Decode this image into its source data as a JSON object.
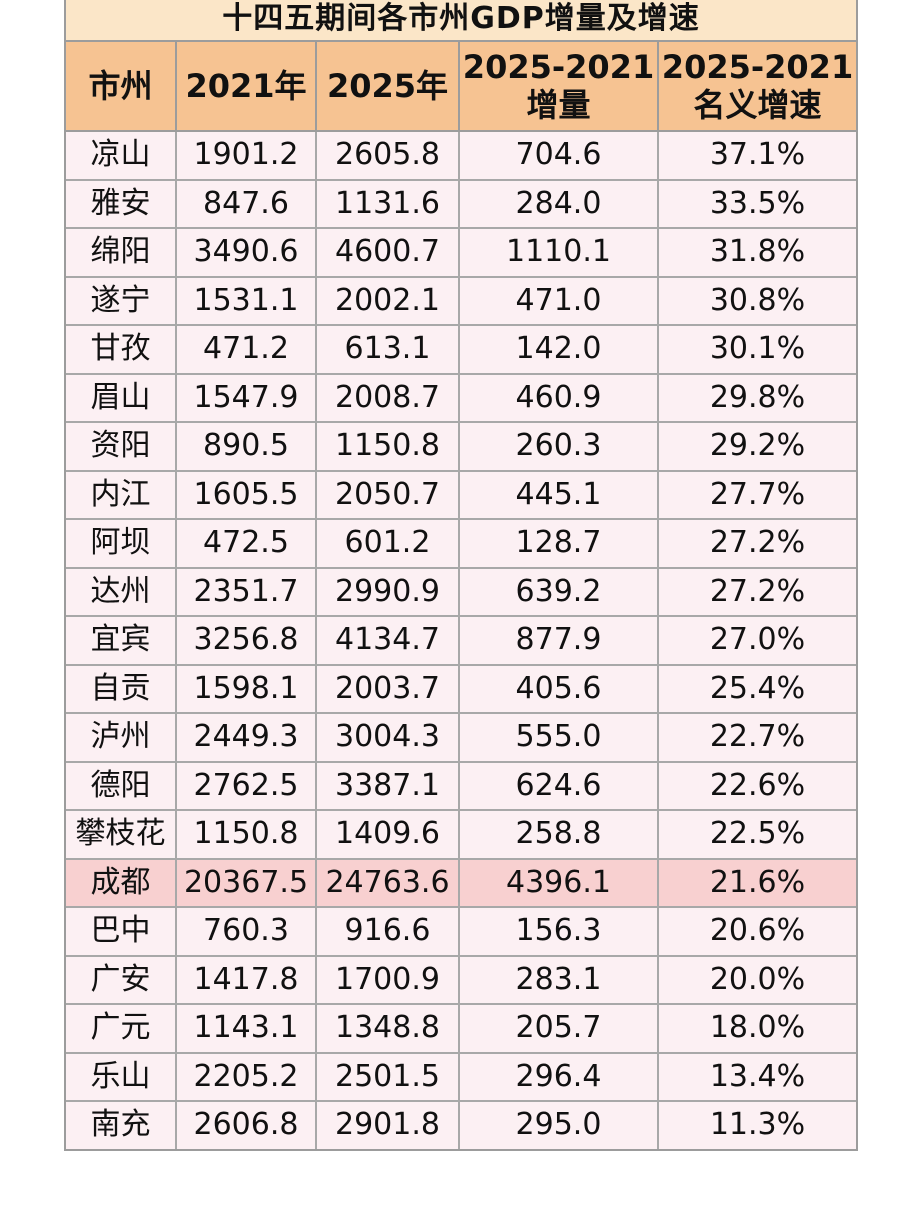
{
  "title": "十四五期间各市州GDP增量及增速",
  "headers": [
    {
      "line1": "市州",
      "line2": ""
    },
    {
      "line1": "2021年",
      "line2": ""
    },
    {
      "line1": "2025年",
      "line2": ""
    },
    {
      "line1": "2025-2021",
      "line2": "增量"
    },
    {
      "line1": "2025-2021",
      "line2": "名义增速"
    }
  ],
  "rows": [
    [
      "凉山",
      "1901.2",
      "2605.8",
      "704.6",
      "37.1%"
    ],
    [
      "雅安",
      "847.6",
      "1131.6",
      "284.0",
      "33.5%"
    ],
    [
      "绵阳",
      "3490.6",
      "4600.7",
      "1110.1",
      "31.8%"
    ],
    [
      "遂宁",
      "1531.1",
      "2002.1",
      "471.0",
      "30.8%"
    ],
    [
      "甘孜",
      "471.2",
      "613.1",
      "142.0",
      "30.1%"
    ],
    [
      "眉山",
      "1547.9",
      "2008.7",
      "460.9",
      "29.8%"
    ],
    [
      "资阳",
      "890.5",
      "1150.8",
      "260.3",
      "29.2%"
    ],
    [
      "内江",
      "1605.5",
      "2050.7",
      "445.1",
      "27.7%"
    ],
    [
      "阿坝",
      "472.5",
      "601.2",
      "128.7",
      "27.2%"
    ],
    [
      "达州",
      "2351.7",
      "2990.9",
      "639.2",
      "27.2%"
    ],
    [
      "宜宾",
      "3256.8",
      "4134.7",
      "877.9",
      "27.0%"
    ],
    [
      "自贡",
      "1598.1",
      "2003.7",
      "405.6",
      "25.4%"
    ],
    [
      "泸州",
      "2449.3",
      "3004.3",
      "555.0",
      "22.7%"
    ],
    [
      "德阳",
      "2762.5",
      "3387.1",
      "624.6",
      "22.6%"
    ],
    [
      "攀枝花",
      "1150.8",
      "1409.6",
      "258.8",
      "22.5%"
    ],
    [
      "成都",
      "20367.5",
      "24763.6",
      "4396.1",
      "21.6%"
    ],
    [
      "巴中",
      "760.3",
      "916.6",
      "156.3",
      "20.6%"
    ],
    [
      "广安",
      "1417.8",
      "1700.9",
      "283.1",
      "20.0%"
    ],
    [
      "广元",
      "1143.1",
      "1348.8",
      "205.7",
      "18.0%"
    ],
    [
      "乐山",
      "2205.2",
      "2501.5",
      "296.4",
      "13.4%"
    ],
    [
      "南充",
      "2606.8",
      "2901.8",
      "295.0",
      "11.3%"
    ]
  ],
  "highlight_row": "成都",
  "colors": {
    "title_bg": "#fbe6c8",
    "header_bg": "#f6c392",
    "cell_bg": "#fcf0f3",
    "highlight_bg": "#f8d0d0",
    "grid": "#9c9c9c"
  }
}
